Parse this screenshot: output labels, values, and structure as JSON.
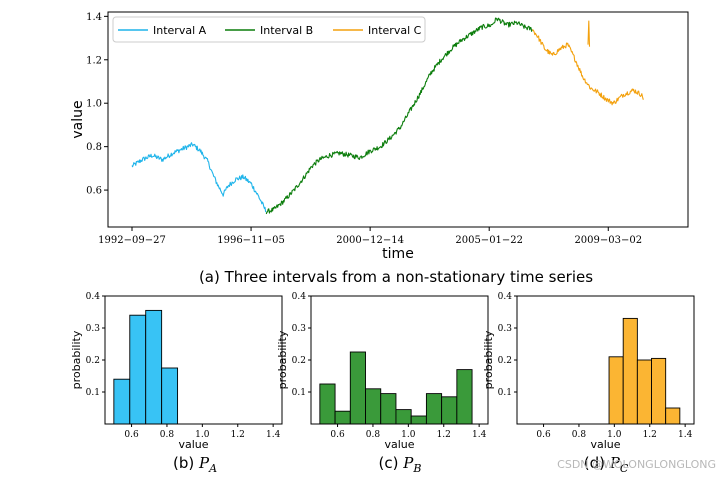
{
  "chart_data": [
    {
      "id": "top",
      "type": "line",
      "title": "",
      "xlabel": "time",
      "ylabel": "value",
      "ylim": [
        0.43,
        1.42
      ],
      "yticks": [
        0.6,
        0.8,
        1.0,
        1.2,
        1.4
      ],
      "ytick_labels": [
        "0.6",
        "0.8",
        "1.0",
        "1.2",
        "1.4"
      ],
      "x_range_index": [
        0,
        210
      ],
      "xticks": [
        {
          "index": 0,
          "label": "1992−09−27"
        },
        {
          "index": 47,
          "label": "1996−11−05"
        },
        {
          "index": 94,
          "label": "2000−12−14"
        },
        {
          "index": 141,
          "label": "2005−01−22"
        },
        {
          "index": 188,
          "label": "2009−03−02"
        }
      ],
      "grid": false,
      "legend_position": "top-left",
      "caption": "(a) Three intervals from a non-stationary time series",
      "series": [
        {
          "name": "Interval A",
          "color": "#1fb4ea",
          "anchors": [
            [
              0,
              0.71
            ],
            [
              4,
              0.74
            ],
            [
              8,
              0.76
            ],
            [
              12,
              0.74
            ],
            [
              16,
              0.77
            ],
            [
              20,
              0.79
            ],
            [
              24,
              0.81
            ],
            [
              27,
              0.78
            ],
            [
              30,
              0.73
            ],
            [
              32,
              0.67
            ],
            [
              34,
              0.62
            ],
            [
              36,
              0.58
            ],
            [
              38,
              0.62
            ],
            [
              41,
              0.65
            ],
            [
              44,
              0.66
            ],
            [
              47,
              0.63
            ],
            [
              50,
              0.57
            ],
            [
              53,
              0.5
            ]
          ]
        },
        {
          "name": "Interval B",
          "color": "#0c7d0c",
          "anchors": [
            [
              53,
              0.5
            ],
            [
              56,
              0.51
            ],
            [
              60,
              0.55
            ],
            [
              64,
              0.6
            ],
            [
              68,
              0.66
            ],
            [
              71,
              0.71
            ],
            [
              74,
              0.74
            ],
            [
              78,
              0.76
            ],
            [
              82,
              0.77
            ],
            [
              86,
              0.76
            ],
            [
              90,
              0.75
            ],
            [
              94,
              0.78
            ],
            [
              98,
              0.8
            ],
            [
              102,
              0.84
            ],
            [
              106,
              0.89
            ],
            [
              110,
              0.97
            ],
            [
              114,
              1.05
            ],
            [
              118,
              1.14
            ],
            [
              122,
              1.2
            ],
            [
              126,
              1.25
            ],
            [
              130,
              1.29
            ],
            [
              134,
              1.32
            ],
            [
              138,
              1.35
            ],
            [
              142,
              1.36
            ],
            [
              144,
              1.39
            ],
            [
              148,
              1.36
            ],
            [
              152,
              1.37
            ],
            [
              155,
              1.35
            ],
            [
              158,
              1.34
            ]
          ]
        },
        {
          "name": "Interval C",
          "color": "#f3a10e",
          "anchors": [
            [
              158,
              1.34
            ],
            [
              160,
              1.31
            ],
            [
              163,
              1.25
            ],
            [
              166,
              1.22
            ],
            [
              169,
              1.25
            ],
            [
              172,
              1.27
            ],
            [
              175,
              1.2
            ],
            [
              178,
              1.12
            ],
            [
              181,
              1.07
            ],
            [
              184,
              1.05
            ],
            [
              187,
              1.02
            ],
            [
              190,
              1.0
            ],
            [
              194,
              1.04
            ],
            [
              198,
              1.06
            ],
            [
              201,
              1.04
            ],
            [
              202,
              1.02
            ]
          ]
        }
      ]
    },
    {
      "id": "b",
      "type": "bar",
      "title": "",
      "xlabel": "value",
      "ylabel": "probability",
      "xlim": [
        0.45,
        1.45
      ],
      "ylim": [
        0,
        0.4
      ],
      "xticks": [
        0.6,
        0.8,
        1.0,
        1.2,
        1.4
      ],
      "xtick_labels": [
        "0.6",
        "0.8",
        "1.0",
        "1.2",
        "1.4"
      ],
      "yticks": [
        0.1,
        0.2,
        0.3,
        0.4
      ],
      "ytick_labels": [
        "0.1",
        "0.2",
        "0.3",
        "0.4"
      ],
      "color": "#38c3f5",
      "bin_edges": [
        0.5,
        0.59,
        0.68,
        0.77,
        0.86
      ],
      "values": [
        0.14,
        0.34,
        0.355,
        0.175
      ],
      "caption_prefix": "(b) ",
      "caption_symbol": "P",
      "caption_sub": "A"
    },
    {
      "id": "c",
      "type": "bar",
      "title": "",
      "xlabel": "value",
      "ylabel": "probability",
      "xlim": [
        0.45,
        1.45
      ],
      "ylim": [
        0,
        0.4
      ],
      "xticks": [
        0.6,
        0.8,
        1.0,
        1.2,
        1.4
      ],
      "xtick_labels": [
        "0.6",
        "0.8",
        "1.0",
        "1.2",
        "1.4"
      ],
      "yticks": [
        0.1,
        0.2,
        0.3,
        0.4
      ],
      "ytick_labels": [
        "0.1",
        "0.2",
        "0.3",
        "0.4"
      ],
      "color": "#3a9a3a",
      "bin_edges": [
        0.5,
        0.586,
        0.672,
        0.758,
        0.844,
        0.93,
        1.016,
        1.102,
        1.188,
        1.274,
        1.36
      ],
      "values": [
        0.125,
        0.04,
        0.225,
        0.11,
        0.095,
        0.045,
        0.025,
        0.095,
        0.085,
        0.17
      ],
      "caption_prefix": "(c) ",
      "caption_symbol": "P",
      "caption_sub": "B"
    },
    {
      "id": "d",
      "type": "bar",
      "title": "",
      "xlabel": "value",
      "ylabel": "probability",
      "xlim": [
        0.45,
        1.45
      ],
      "ylim": [
        0,
        0.4
      ],
      "xticks": [
        0.6,
        0.8,
        1.0,
        1.2,
        1.4
      ],
      "xtick_labels": [
        "0.6",
        "0.8",
        "1.0",
        "1.2",
        "1.4"
      ],
      "yticks": [
        0.1,
        0.2,
        0.3,
        0.4
      ],
      "ytick_labels": [
        "0.1",
        "0.2",
        "0.3",
        "0.4"
      ],
      "color": "#fbb533",
      "bin_edges": [
        0.97,
        1.05,
        1.13,
        1.21,
        1.29,
        1.37
      ],
      "values": [
        0.21,
        0.33,
        0.2,
        0.205,
        0.05
      ],
      "caption_prefix": "(d) ",
      "caption_symbol": "P",
      "caption_sub": "C"
    }
  ],
  "watermark": "CSDN @WOLONGLONGLONG"
}
